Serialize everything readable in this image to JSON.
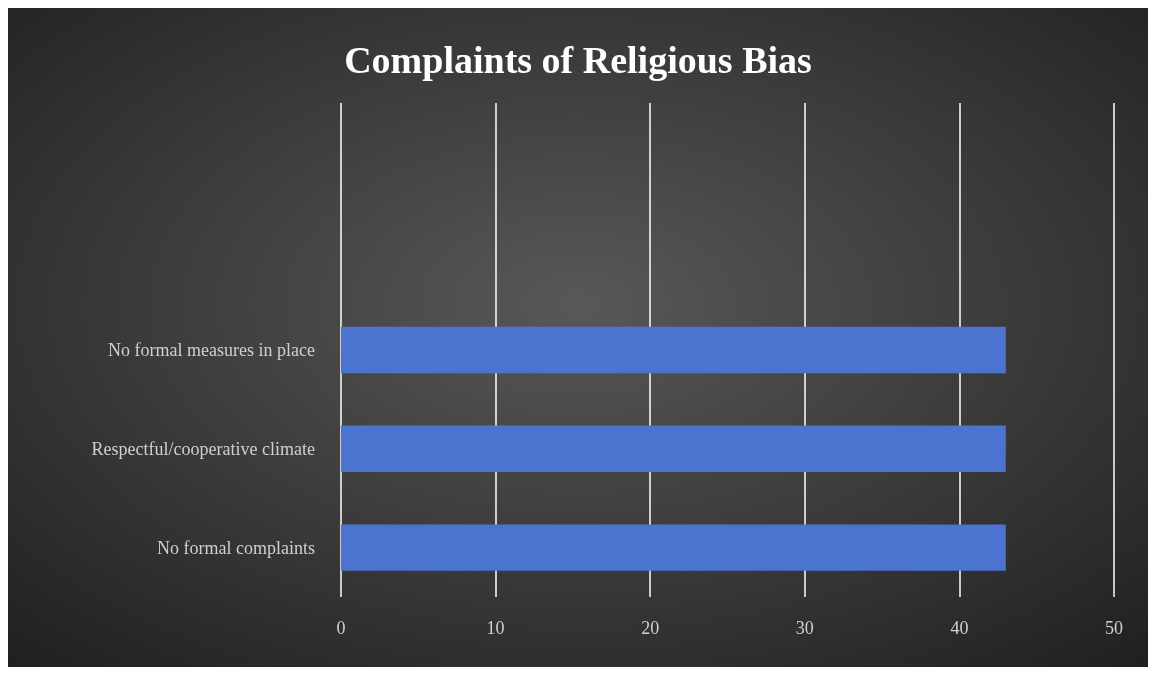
{
  "chart_data": {
    "type": "bar",
    "title": "Complaints of Religious Bias",
    "orientation": "horizontal",
    "categories": [
      null,
      null,
      "No formal measures in place",
      "Respectful/cooperative climate",
      "No formal complaints"
    ],
    "values": [
      null,
      null,
      43,
      43,
      43
    ],
    "color": "#4a74cf",
    "xlim": [
      0,
      50
    ],
    "xticks": [
      0,
      10,
      20,
      30,
      40,
      50
    ],
    "grid": "x"
  }
}
